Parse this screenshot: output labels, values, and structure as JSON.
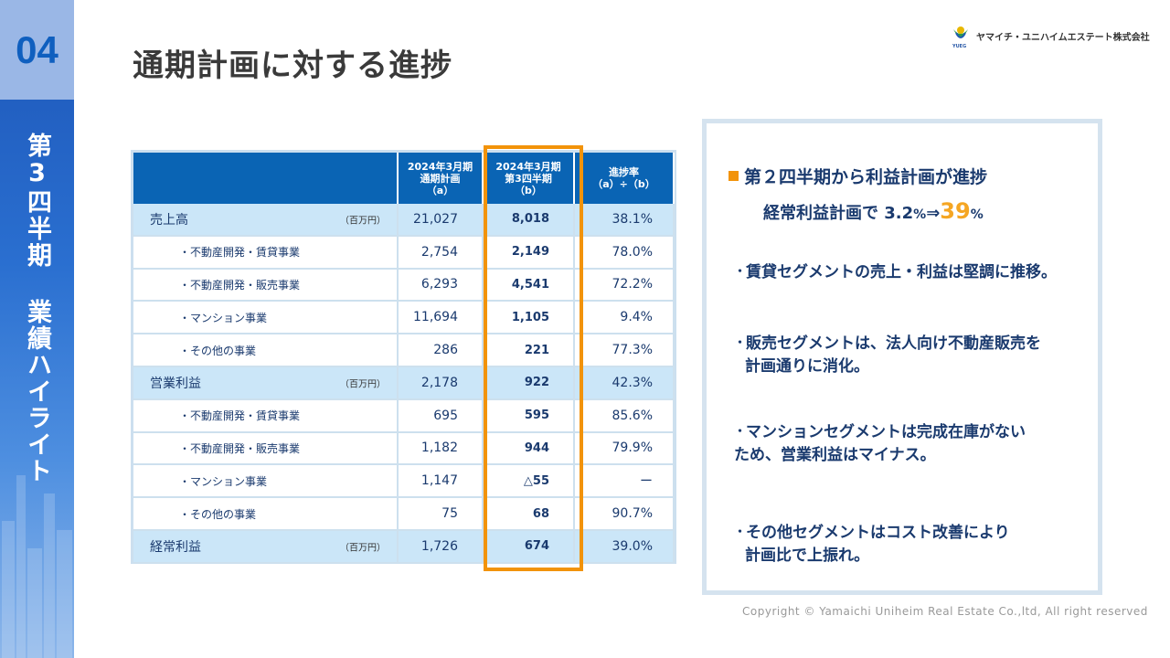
{
  "sidebar": {
    "number": "04",
    "title": "第3四半期 業績ハイライト"
  },
  "page_title": "通期計画に対する進捗",
  "logo": {
    "company": "ヤマイチ・ユニハイムエステート株式会社",
    "abbr": "YUEG"
  },
  "table": {
    "headers": [
      "",
      "2024年3月期\n通期計画\n（a）",
      "2024年3月期\n第3四半期\n（b）",
      "進捗率\n（a）÷（b）"
    ],
    "unit": "（百万円）",
    "rows": [
      {
        "label": "売上高",
        "a": "21,027",
        "b": "8,018",
        "rate": "38.1%",
        "main": true
      },
      {
        "label": "・不動産開発・賃貸事業",
        "a": "2,754",
        "b": "2,149",
        "rate": "78.0%",
        "main": false
      },
      {
        "label": "・不動産開発・販売事業",
        "a": "6,293",
        "b": "4,541",
        "rate": "72.2%",
        "main": false
      },
      {
        "label": "・マンション事業",
        "a": "11,694",
        "b": "1,105",
        "rate": "9.4%",
        "main": false
      },
      {
        "label": "・その他の事業",
        "a": "286",
        "b": "221",
        "rate": "77.3%",
        "main": false
      },
      {
        "label": "営業利益",
        "a": "2,178",
        "b": "922",
        "rate": "42.3%",
        "main": true
      },
      {
        "label": "・不動産開発・賃貸事業",
        "a": "695",
        "b": "595",
        "rate": "85.6%",
        "main": false
      },
      {
        "label": "・不動産開発・販売事業",
        "a": "1,182",
        "b": "944",
        "rate": "79.9%",
        "main": false
      },
      {
        "label": "・マンション事業",
        "a": "1,147",
        "b": "△55",
        "rate": "ー",
        "main": false
      },
      {
        "label": "・その他の事業",
        "a": "75",
        "b": "68",
        "rate": "90.7%",
        "main": false
      },
      {
        "label": "経常利益",
        "a": "1,726",
        "b": "674",
        "rate": "39.0%",
        "main": true
      }
    ]
  },
  "summary": {
    "heading": "第２四半期から利益計画が進捗",
    "sub_prefix": "経常利益計画で 3.2",
    "sub_pct1": "%",
    "sub_arrow": "⇒",
    "sub_big": "39",
    "sub_pct2": "%",
    "bullets": [
      [
        "賃貸セグメントの売上・利益は堅調に推移。"
      ],
      [
        "販売セグメントは、法人向け不動産販売を",
        "計画通りに消化。"
      ],
      [
        "マンションセグメントは完成在庫がない",
        "ため、営業利益はマイナス。"
      ],
      [
        "その他セグメントはコスト改善により",
        "計画比で上振れ。"
      ]
    ],
    "bullet_mark": "・"
  },
  "copyright": "Copyright © Yamaichi Uniheim Real Estate Co.,ltd, All right reserved",
  "colors": {
    "accent": "#f2930a",
    "header": "#0a64b4",
    "sidebar": "#1d56b8"
  }
}
